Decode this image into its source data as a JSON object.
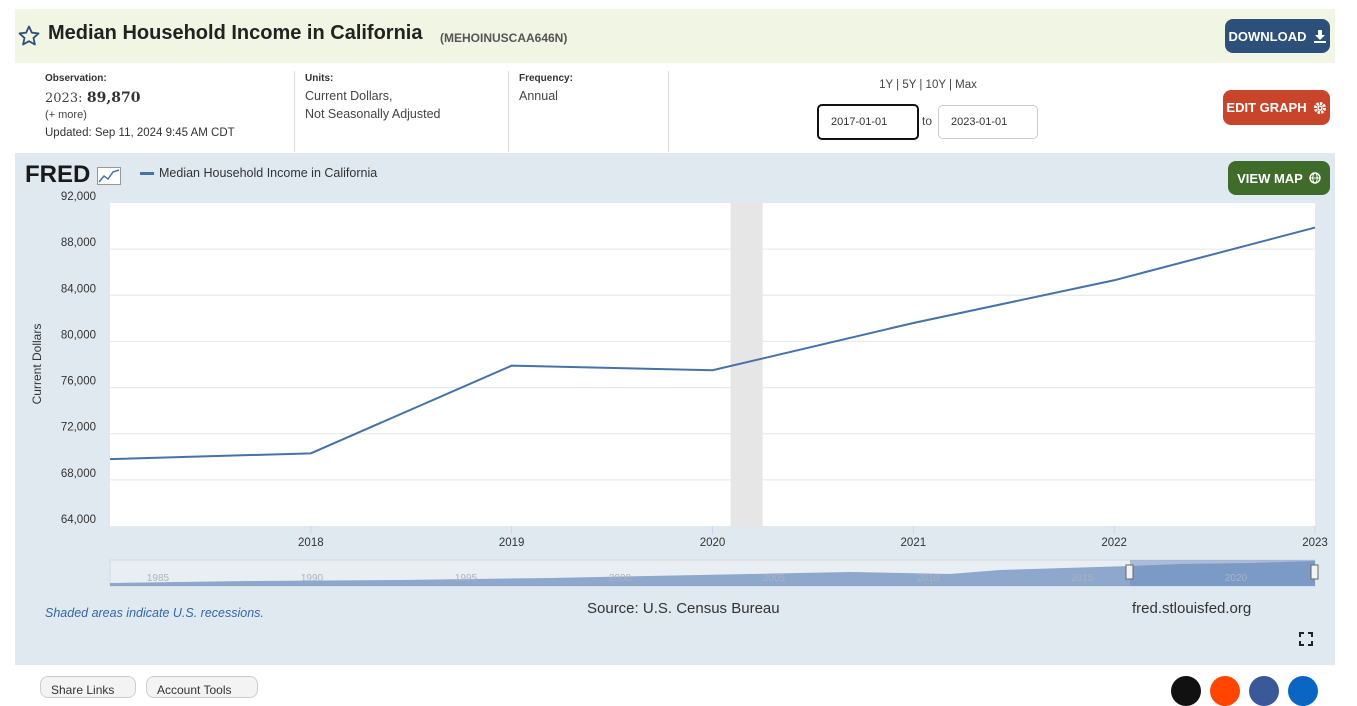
{
  "header": {
    "title": "Median Household Income in California",
    "series_id": "(MEHOINUSCAA646N)",
    "download_label": "DOWNLOAD"
  },
  "meta": {
    "observation_label": "Observation:",
    "observation_year": "2023:",
    "observation_value": "89,870",
    "more_link": "(+ more)",
    "updated": "Updated: Sep 11, 2024 9:45 AM CDT",
    "units_label": "Units:",
    "units_line1": "Current Dollars,",
    "units_line2": "Not Seasonally Adjusted",
    "frequency_label": "Frequency:",
    "frequency_value": "Annual"
  },
  "range": {
    "links": "1Y | 5Y | 10Y | Max",
    "start": "2017-01-01",
    "to": "to",
    "end": "2023-01-01"
  },
  "buttons": {
    "edit_graph": "EDIT GRAPH",
    "view_map": "VIEW MAP"
  },
  "graph": {
    "logo": "FRED",
    "legend": "Median Household Income in California",
    "recession_note": "Shaded areas indicate U.S. recessions.",
    "source": "Source: U.S. Census Bureau",
    "site": "fred.stlouisfed.org"
  },
  "chart_data": {
    "type": "line",
    "title": "",
    "xlabel": "",
    "ylabel": "Current Dollars",
    "x": [
      2017,
      2018,
      2019,
      2020,
      2021,
      2022,
      2023
    ],
    "x_ticks": [
      "2018",
      "2019",
      "2020",
      "2021",
      "2022",
      "2023"
    ],
    "y_ticks": [
      "92,000",
      "88,000",
      "84,000",
      "80,000",
      "76,000",
      "72,000",
      "68,000",
      "64,000"
    ],
    "ylim": [
      64000,
      92000
    ],
    "series": [
      {
        "name": "Median Household Income in California",
        "color": "#4572a7",
        "values": [
          69800,
          70300,
          77900,
          77500,
          81600,
          85300,
          89870
        ]
      }
    ],
    "recession_shading": [
      [
        2020.09,
        2020.25
      ]
    ],
    "navigator_labels": [
      "1985",
      "1990",
      "1995",
      "2000",
      "2005",
      "2010",
      "2015",
      "2020"
    ],
    "grid": true
  },
  "footer": {
    "share_links": "Share Links",
    "account_tools": "Account Tools"
  },
  "colors": {
    "line": "#4572a7",
    "download": "#2c5079",
    "edit": "#c8452c",
    "map": "#3f6b2b"
  }
}
